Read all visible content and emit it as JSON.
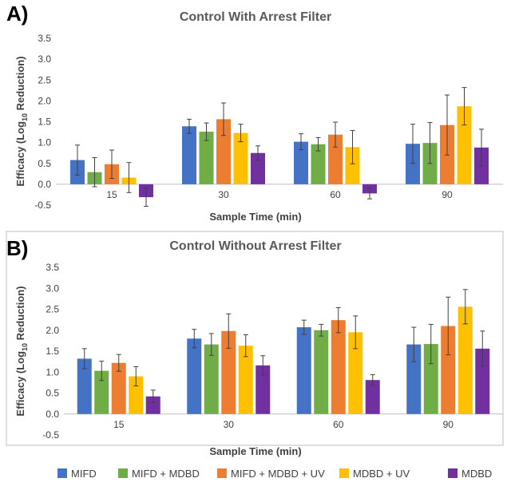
{
  "chart_data": [
    {
      "panel": "A)",
      "type": "bar",
      "title": "Control With Arrest Filter",
      "xlabel": "Sample Time (min)",
      "ylabel_prefix": "Efficacy (Log",
      "ylabel_sub": "10",
      "ylabel_suffix": " Reduction)",
      "ylim": [
        -0.5,
        3.5
      ],
      "yticks": [
        "-0.5",
        "0.0",
        "0.5",
        "1.0",
        "1.5",
        "2.0",
        "2.5",
        "3.0",
        "3.5"
      ],
      "ytick_values": [
        -0.5,
        0,
        0.5,
        1,
        1.5,
        2,
        2.5,
        3,
        3.5
      ],
      "categories": [
        "15",
        "30",
        "60",
        "90"
      ],
      "series": [
        {
          "name": "MIFD",
          "color": "#4472C4",
          "values": [
            0.58,
            1.39,
            1.02,
            0.97
          ],
          "errors": [
            0.36,
            0.17,
            0.19,
            0.47
          ]
        },
        {
          "name": "MIFD + MDBD",
          "color": "#70AD47",
          "values": [
            0.29,
            1.26,
            0.96,
            0.99
          ],
          "errors": [
            0.35,
            0.21,
            0.16,
            0.49
          ]
        },
        {
          "name": "MIFD + MDBD + UV",
          "color": "#ED7D31",
          "values": [
            0.48,
            1.56,
            1.19,
            1.42
          ],
          "errors": [
            0.34,
            0.39,
            0.3,
            0.72
          ]
        },
        {
          "name": "MDBD + UV",
          "color": "#FFC000",
          "values": [
            0.16,
            1.23,
            0.89,
            1.87
          ],
          "errors": [
            0.36,
            0.21,
            0.4,
            0.45
          ]
        },
        {
          "name": "MDBD",
          "color": "#7030A0",
          "values": [
            -0.31,
            0.75,
            -0.22,
            0.88
          ],
          "errors": [
            0.22,
            0.17,
            0.13,
            0.44
          ]
        }
      ]
    },
    {
      "panel": "B)",
      "type": "bar",
      "title": "Control Without Arrest Filter",
      "xlabel": "Sample Time (min)",
      "ylabel_prefix": "Efficacy (Log",
      "ylabel_sub": "10",
      "ylabel_suffix": " Reduction)",
      "ylim": [
        -0.5,
        3.5
      ],
      "yticks": [
        "-0.5",
        "0.0",
        "0.5",
        "1.0",
        "1.5",
        "2.0",
        "2.5",
        "3.0",
        "3.5"
      ],
      "ytick_values": [
        -0.5,
        0,
        0.5,
        1,
        1.5,
        2,
        2.5,
        3,
        3.5
      ],
      "categories": [
        "15",
        "30",
        "60",
        "90"
      ],
      "series": [
        {
          "name": "MIFD",
          "color": "#4472C4",
          "values": [
            1.32,
            1.8,
            2.07,
            1.66
          ],
          "errors": [
            0.24,
            0.22,
            0.17,
            0.41
          ]
        },
        {
          "name": "MIFD + MDBD",
          "color": "#70AD47",
          "values": [
            1.03,
            1.66,
            2.0,
            1.67
          ],
          "errors": [
            0.23,
            0.26,
            0.14,
            0.47
          ]
        },
        {
          "name": "MIFD + MDBD + UV",
          "color": "#ED7D31",
          "values": [
            1.22,
            1.98,
            2.24,
            2.1
          ],
          "errors": [
            0.2,
            0.41,
            0.3,
            0.69
          ]
        },
        {
          "name": "MDBD + UV",
          "color": "#FFC000",
          "values": [
            0.9,
            1.63,
            1.95,
            2.56
          ],
          "errors": [
            0.23,
            0.26,
            0.39,
            0.41
          ]
        },
        {
          "name": "MDBD",
          "color": "#7030A0",
          "values": [
            0.42,
            1.16,
            0.81,
            1.56
          ],
          "errors": [
            0.15,
            0.23,
            0.13,
            0.42
          ]
        }
      ]
    }
  ],
  "legend": [
    {
      "name": "MIFD",
      "color": "#4472C4"
    },
    {
      "name": "MIFD + MDBD",
      "color": "#70AD47"
    },
    {
      "name": "MIFD + MDBD + UV",
      "color": "#ED7D31"
    },
    {
      "name": "MDBD + UV",
      "color": "#FFC000"
    },
    {
      "name": "MDBD",
      "color": "#7030A0"
    }
  ]
}
